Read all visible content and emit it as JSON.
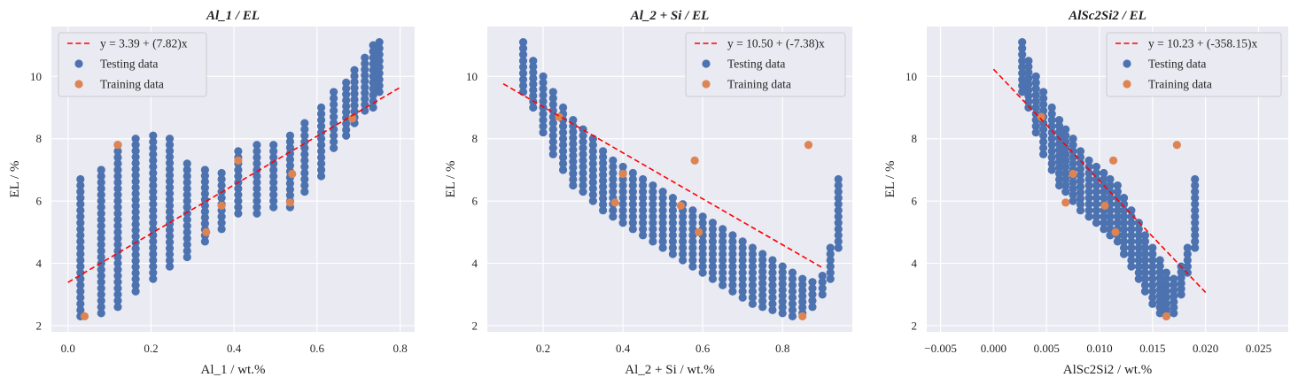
{
  "colors": {
    "plot_bg": "#EAEAF2",
    "grid": "#FFFFFF",
    "testing": "#4C72B0",
    "training": "#DD8452",
    "fit": "#FF0000"
  },
  "chart_data": [
    {
      "type": "scatter",
      "title": "Al_1 / EL",
      "xlabel": "Al_1 / wt.%",
      "ylabel": "EL / %",
      "xlim": [
        -0.04,
        0.835
      ],
      "ylim": [
        1.8,
        11.6
      ],
      "xticks": [
        0.0,
        0.2,
        0.4,
        0.6,
        0.8
      ],
      "xtick_labels": [
        "0.0",
        "0.2",
        "0.4",
        "0.6",
        "0.8"
      ],
      "yticks": [
        2,
        4,
        6,
        8,
        10
      ],
      "ytick_labels": [
        "2",
        "4",
        "6",
        "8",
        "10"
      ],
      "fit": {
        "label": "y = 3.39 + (7.82)x",
        "intercept": 3.39,
        "slope": 7.82,
        "x_range": [
          0.0,
          0.8
        ]
      },
      "legend": [
        "Testing data",
        "Training data"
      ],
      "legend_loc": "upper left",
      "training_points": [
        [
          0.04,
          2.3
        ],
        [
          0.12,
          7.8
        ],
        [
          0.333,
          5.0
        ],
        [
          0.37,
          5.85
        ],
        [
          0.41,
          7.3
        ],
        [
          0.535,
          5.95
        ],
        [
          0.54,
          6.87
        ],
        [
          0.685,
          8.65
        ]
      ],
      "testing_groups": [
        [
          0.03,
          2.3,
          6.7
        ],
        [
          0.08,
          2.4,
          7.0
        ],
        [
          0.12,
          2.6,
          7.8
        ],
        [
          0.163,
          3.1,
          8.0
        ],
        [
          0.205,
          3.5,
          8.1
        ],
        [
          0.245,
          3.9,
          8.0
        ],
        [
          0.287,
          4.2,
          7.2
        ],
        [
          0.33,
          4.7,
          7.0
        ],
        [
          0.37,
          5.1,
          6.9
        ],
        [
          0.41,
          5.6,
          7.6
        ],
        [
          0.455,
          5.6,
          7.8
        ],
        [
          0.495,
          5.8,
          7.8
        ],
        [
          0.535,
          5.8,
          8.1
        ],
        [
          0.57,
          6.3,
          8.5
        ],
        [
          0.61,
          6.8,
          9.0
        ],
        [
          0.64,
          7.7,
          9.5
        ],
        [
          0.67,
          8.1,
          9.8
        ],
        [
          0.69,
          8.5,
          10.2
        ],
        [
          0.715,
          8.9,
          10.6
        ],
        [
          0.735,
          9.0,
          11.0
        ],
        [
          0.75,
          9.5,
          11.1
        ]
      ]
    },
    {
      "type": "scatter",
      "title": "Al_2 + Si / EL",
      "xlabel": "Al_2 + Si / wt.%",
      "ylabel": "EL / %",
      "xlim": [
        0.06,
        0.975
      ],
      "ylim": [
        1.8,
        11.6
      ],
      "xticks": [
        0.2,
        0.4,
        0.6,
        0.8
      ],
      "xtick_labels": [
        "0.2",
        "0.4",
        "0.6",
        "0.8"
      ],
      "yticks": [
        2,
        4,
        6,
        8,
        10
      ],
      "ytick_labels": [
        "2",
        "4",
        "6",
        "8",
        "10"
      ],
      "fit": {
        "label": "y = 10.50 + (-7.38)x",
        "intercept": 10.5,
        "slope": -7.38,
        "x_range": [
          0.1,
          0.9
        ]
      },
      "legend": [
        "Testing data",
        "Training data"
      ],
      "legend_loc": "upper right",
      "training_points": [
        [
          0.24,
          8.7
        ],
        [
          0.38,
          5.95
        ],
        [
          0.4,
          6.87
        ],
        [
          0.545,
          5.85
        ],
        [
          0.58,
          7.3
        ],
        [
          0.59,
          5.0
        ],
        [
          0.85,
          2.3
        ],
        [
          0.865,
          7.8
        ]
      ],
      "testing_groups": [
        [
          0.15,
          9.5,
          11.1
        ],
        [
          0.175,
          9.0,
          10.5
        ],
        [
          0.2,
          8.2,
          10.0
        ],
        [
          0.225,
          7.5,
          9.5
        ],
        [
          0.25,
          7.0,
          9.0
        ],
        [
          0.275,
          6.5,
          8.6
        ],
        [
          0.3,
          6.3,
          8.3
        ],
        [
          0.325,
          6.0,
          8.0
        ],
        [
          0.35,
          5.7,
          7.6
        ],
        [
          0.375,
          5.5,
          7.3
        ],
        [
          0.4,
          5.3,
          7.1
        ],
        [
          0.425,
          5.1,
          6.9
        ],
        [
          0.45,
          4.9,
          6.7
        ],
        [
          0.475,
          4.7,
          6.5
        ],
        [
          0.5,
          4.5,
          6.3
        ],
        [
          0.525,
          4.3,
          6.1
        ],
        [
          0.55,
          4.1,
          5.9
        ],
        [
          0.575,
          3.9,
          5.7
        ],
        [
          0.6,
          3.7,
          5.5
        ],
        [
          0.625,
          3.5,
          5.3
        ],
        [
          0.65,
          3.3,
          5.1
        ],
        [
          0.675,
          3.1,
          4.9
        ],
        [
          0.7,
          2.9,
          4.7
        ],
        [
          0.725,
          2.7,
          4.5
        ],
        [
          0.75,
          2.6,
          4.3
        ],
        [
          0.775,
          2.5,
          4.1
        ],
        [
          0.8,
          2.4,
          3.9
        ],
        [
          0.825,
          2.3,
          3.7
        ],
        [
          0.85,
          2.4,
          3.5
        ],
        [
          0.875,
          2.6,
          3.4
        ],
        [
          0.9,
          3.0,
          3.6
        ],
        [
          0.92,
          3.5,
          4.5
        ],
        [
          0.94,
          4.5,
          6.7
        ]
      ]
    },
    {
      "type": "scatter",
      "title": "AlSc2Si2 / EL",
      "xlabel": "AlSc2Si2 / wt.%",
      "ylabel": "EL / %",
      "xlim": [
        -0.0063,
        0.0278
      ],
      "ylim": [
        1.8,
        11.6
      ],
      "xticks": [
        -0.005,
        0.0,
        0.005,
        0.01,
        0.015,
        0.02,
        0.025
      ],
      "xtick_labels": [
        "−0.005",
        "0.000",
        "0.005",
        "0.010",
        "0.015",
        "0.020",
        "0.025"
      ],
      "yticks": [
        2,
        4,
        6,
        8,
        10
      ],
      "ytick_labels": [
        "2",
        "4",
        "6",
        "8",
        "10"
      ],
      "fit": {
        "label": "y = 10.23 + (-358.15)x",
        "intercept": 10.23,
        "slope": -358.15,
        "x_range": [
          0.0,
          0.02
        ]
      },
      "legend": [
        "Testing data",
        "Training data"
      ],
      "legend_loc": "upper right",
      "training_points": [
        [
          0.0045,
          8.7
        ],
        [
          0.0068,
          5.95
        ],
        [
          0.0075,
          6.87
        ],
        [
          0.0105,
          5.85
        ],
        [
          0.0113,
          7.3
        ],
        [
          0.0115,
          5.0
        ],
        [
          0.0163,
          2.3
        ],
        [
          0.0173,
          7.8
        ]
      ],
      "testing_groups": [
        [
          0.0027,
          9.5,
          11.1
        ],
        [
          0.0033,
          9.0,
          10.5
        ],
        [
          0.004,
          8.2,
          10.0
        ],
        [
          0.0047,
          7.5,
          9.5
        ],
        [
          0.0055,
          7.0,
          9.0
        ],
        [
          0.0062,
          6.5,
          8.6
        ],
        [
          0.0068,
          6.3,
          8.3
        ],
        [
          0.0075,
          6.0,
          8.0
        ],
        [
          0.0082,
          5.7,
          7.6
        ],
        [
          0.009,
          5.5,
          7.3
        ],
        [
          0.0097,
          5.3,
          7.1
        ],
        [
          0.0104,
          5.1,
          6.9
        ],
        [
          0.011,
          4.9,
          6.7
        ],
        [
          0.0117,
          4.7,
          6.5
        ],
        [
          0.0123,
          4.3,
          6.1
        ],
        [
          0.013,
          3.9,
          5.7
        ],
        [
          0.0137,
          3.5,
          5.3
        ],
        [
          0.0143,
          3.1,
          4.9
        ],
        [
          0.015,
          2.7,
          4.5
        ],
        [
          0.0157,
          2.4,
          4.1
        ],
        [
          0.0163,
          2.3,
          3.7
        ],
        [
          0.017,
          2.4,
          3.5
        ],
        [
          0.0177,
          3.0,
          3.9
        ],
        [
          0.0183,
          3.7,
          4.5
        ],
        [
          0.019,
          4.5,
          6.7
        ]
      ]
    }
  ]
}
